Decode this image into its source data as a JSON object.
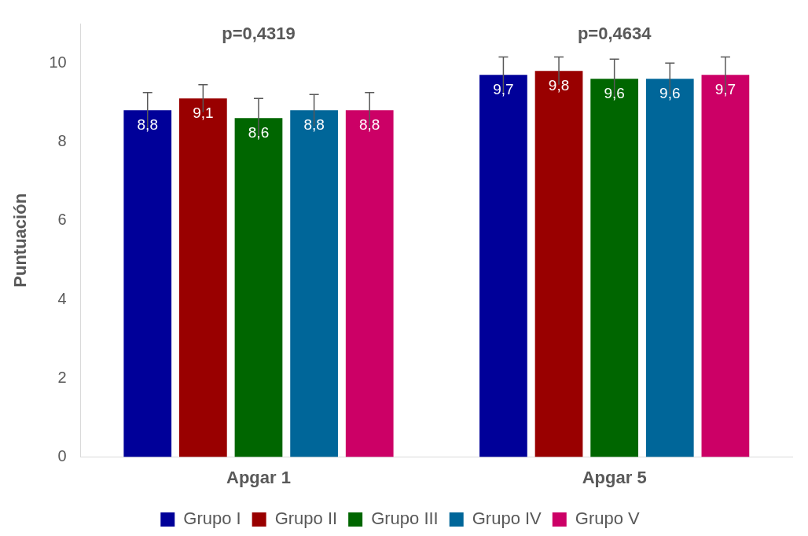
{
  "chart_data": {
    "type": "bar",
    "ylabel": "Puntuación",
    "categories": [
      "Apgar 1",
      "Apgar 5"
    ],
    "series": [
      {
        "name": "Grupo I",
        "color": "#000099",
        "values": [
          8.8,
          9.7
        ],
        "errors": [
          0.45,
          0.45
        ],
        "value_labels": [
          "8,8",
          "9,7"
        ]
      },
      {
        "name": "Grupo II",
        "color": "#990000",
        "values": [
          9.1,
          9.8
        ],
        "errors": [
          0.35,
          0.35
        ],
        "value_labels": [
          "9,1",
          "9,8"
        ]
      },
      {
        "name": "Grupo III",
        "color": "#006600",
        "values": [
          8.6,
          9.6
        ],
        "errors": [
          0.5,
          0.5
        ],
        "value_labels": [
          "8,6",
          "9,6"
        ]
      },
      {
        "name": "Grupo IV",
        "color": "#006699",
        "values": [
          8.8,
          9.6
        ],
        "errors": [
          0.4,
          0.4
        ],
        "value_labels": [
          "8,8",
          "9,6"
        ]
      },
      {
        "name": "Grupo V",
        "color": "#cc0066",
        "values": [
          8.8,
          9.7
        ],
        "errors": [
          0.45,
          0.45
        ],
        "value_labels": [
          "8,8",
          "9,7"
        ]
      }
    ],
    "annotations": [
      "p=0,4319",
      "p=0,4634"
    ],
    "ylim": [
      0,
      11
    ],
    "yticks": [
      0,
      2,
      4,
      6,
      8,
      10
    ],
    "grid": false,
    "legend": "bottom"
  }
}
